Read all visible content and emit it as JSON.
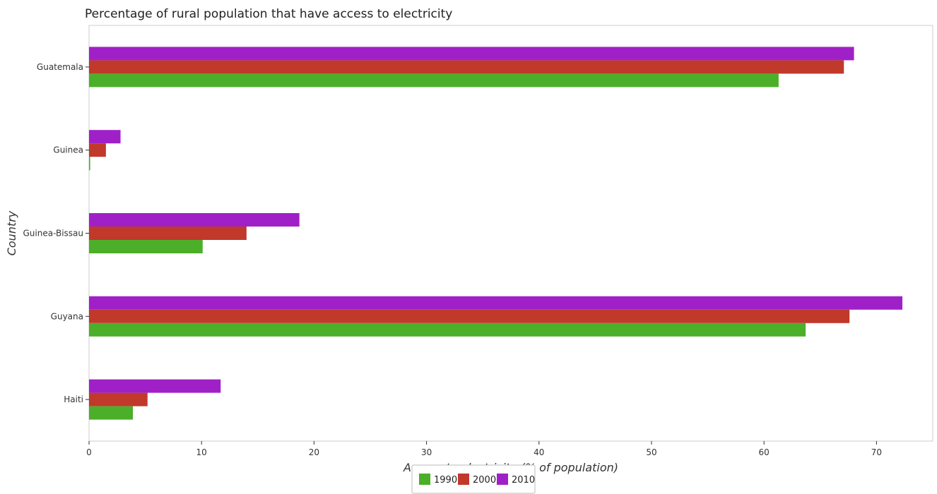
{
  "chart_data": {
    "type": "bar",
    "orientation": "horizontal",
    "title": "Percentage of rural population that have access to electricity",
    "xlabel": "Access to electricity (% of population)",
    "ylabel": "Country",
    "categories": [
      "Guatemala",
      "Guinea",
      "Guinea-Bissau",
      "Guyana",
      "Haiti"
    ],
    "series": [
      {
        "name": "1990",
        "color": "#4caf29",
        "values": [
          61.3,
          0.1,
          10.1,
          63.7,
          3.9
        ]
      },
      {
        "name": "2000",
        "color": "#c0392b",
        "values": [
          67.1,
          1.5,
          14.0,
          67.6,
          5.2
        ]
      },
      {
        "name": "2010",
        "color": "#a020c8",
        "values": [
          68.0,
          2.8,
          18.7,
          72.3,
          11.7
        ]
      }
    ],
    "xlim": [
      0,
      75
    ],
    "xticks": [
      0,
      10,
      20,
      30,
      40,
      50,
      60,
      70
    ],
    "xtick_labels": [
      "0",
      "10",
      "20",
      "30",
      "40",
      "50",
      "60",
      "70"
    ],
    "grid": false,
    "legend_position": "bottom-center"
  }
}
